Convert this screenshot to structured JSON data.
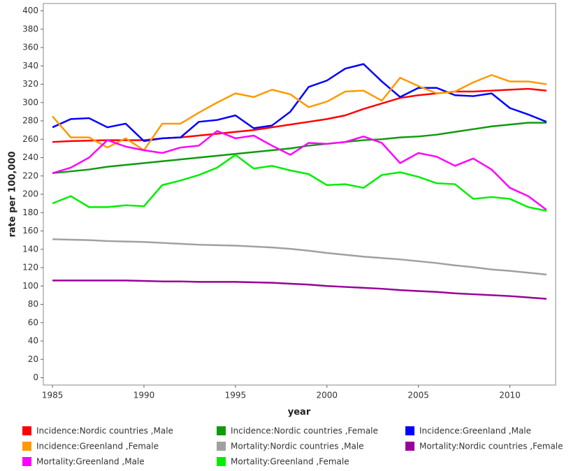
{
  "chart_data": {
    "type": "line",
    "xlabel": "year",
    "ylabel": "rate per 100,000",
    "x": [
      1985,
      1986,
      1987,
      1988,
      1989,
      1990,
      1991,
      1992,
      1993,
      1994,
      1995,
      1996,
      1997,
      1998,
      1999,
      2000,
      2001,
      2002,
      2003,
      2004,
      2005,
      2006,
      2007,
      2008,
      2009,
      2010,
      2011,
      2012
    ],
    "xlim": [
      1984.5,
      2012.5
    ],
    "xticks": [
      1985,
      1990,
      1995,
      2000,
      2005,
      2010
    ],
    "ylim": [
      -8,
      408
    ],
    "yticks": [
      0,
      20,
      40,
      60,
      80,
      100,
      120,
      140,
      160,
      180,
      200,
      220,
      240,
      260,
      280,
      300,
      320,
      340,
      360,
      380,
      400
    ],
    "series": [
      {
        "name": "Incidence:Nordic countries ,Male",
        "color": "#ff0000",
        "values": [
          257,
          258,
          258.5,
          259,
          259,
          259,
          261,
          262,
          264,
          266,
          268,
          270,
          273,
          276,
          279,
          282,
          286,
          293,
          299,
          305,
          308,
          310,
          312,
          312,
          313,
          314,
          315,
          313
        ]
      },
      {
        "name": "Incidence:Nordic countries ,Female",
        "color": "#119911",
        "values": [
          223,
          225,
          227,
          230,
          232,
          234,
          236,
          238,
          240,
          242,
          244,
          246,
          248,
          250,
          253,
          255,
          257,
          259,
          260,
          262,
          263,
          265,
          268,
          271,
          274,
          276,
          278,
          278
        ]
      },
      {
        "name": "Incidence:Greenland ,Male",
        "color": "#0000ff",
        "values": [
          273,
          282,
          283,
          273,
          277,
          258,
          261,
          262,
          279,
          281,
          286,
          272,
          275,
          290,
          317,
          324,
          337,
          342,
          323,
          306,
          316,
          316,
          308,
          307,
          310,
          294,
          287,
          279
        ]
      },
      {
        "name": "Incidence:Greenland ,Female",
        "color": "#ff9900",
        "values": [
          285,
          262,
          262,
          251,
          261,
          248,
          277,
          277,
          289,
          300,
          310,
          306,
          314,
          309,
          295,
          301,
          312,
          313,
          302,
          327,
          318,
          310,
          312,
          322,
          330,
          323,
          323,
          320
        ]
      },
      {
        "name": "Mortality:Nordic countries ,Male",
        "color": "#a0a0a0",
        "values": [
          151,
          150.5,
          150,
          149,
          148.5,
          148,
          147,
          146,
          145,
          144.5,
          144,
          143,
          142,
          140.5,
          138.5,
          136,
          134,
          132,
          130.5,
          129,
          127,
          125,
          122.5,
          120.5,
          118,
          116.5,
          114.5,
          112.5
        ]
      },
      {
        "name": "Mortality:Nordic countries ,Female",
        "color": "#990099",
        "values": [
          106,
          106,
          106,
          106,
          106,
          105.5,
          105,
          105,
          104.5,
          104.5,
          104.5,
          104,
          103.5,
          102.5,
          101.5,
          100,
          99,
          98,
          97,
          95.5,
          94.5,
          93.5,
          92,
          91,
          90,
          89,
          87.5,
          86
        ]
      },
      {
        "name": "Mortality:Greenland ,Male",
        "color": "#ff00ff",
        "values": [
          223,
          229,
          240,
          259,
          252,
          248,
          245,
          251,
          253,
          269,
          261,
          264,
          253,
          243,
          256,
          255,
          257,
          263,
          256,
          234,
          245,
          241,
          231,
          239,
          227,
          207,
          198,
          183
        ]
      },
      {
        "name": "Mortality:Greenland ,Female",
        "color": "#00ee00",
        "values": [
          190,
          198,
          186,
          186,
          188,
          187,
          210,
          215,
          221,
          229,
          243,
          228,
          231,
          226,
          222,
          210,
          211,
          207,
          221,
          224,
          219,
          212,
          211,
          195,
          197,
          195,
          186,
          182
        ]
      }
    ]
  }
}
